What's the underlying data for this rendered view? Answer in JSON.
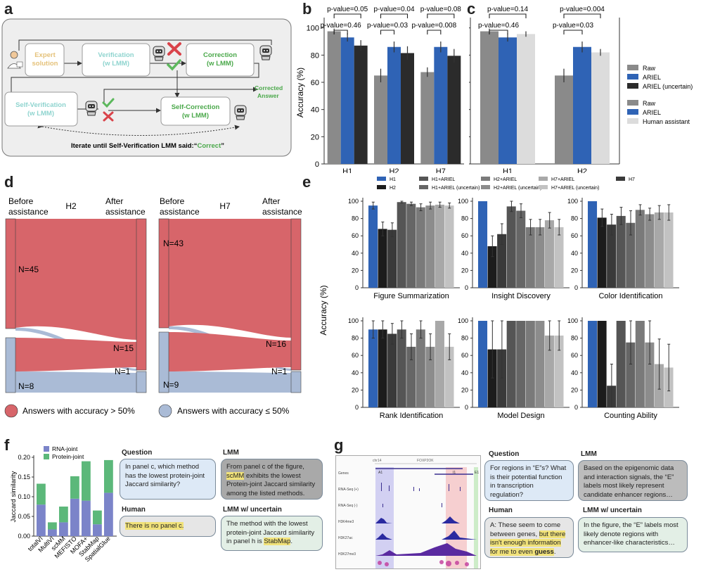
{
  "panels": {
    "a": "a",
    "b": "b",
    "c": "c",
    "d": "d",
    "e": "e",
    "f": "f",
    "g": "g"
  },
  "colors": {
    "raw": "#8a8a8a",
    "ariel": "#2f63b5",
    "uncertain": "#2b2b2b",
    "human": "#dcdcdc",
    "red": "#d7656a",
    "blue": "#aabbd6"
  },
  "panel_a": {
    "expert": [
      "Expert",
      "solution"
    ],
    "verification": [
      "Verification",
      "(w LMM)"
    ],
    "correction": [
      "Correction",
      "(w LMM)"
    ],
    "self_verification": [
      "Self-Verification",
      "(w LMM)"
    ],
    "self_correction": [
      "Self-Correction",
      "(w LMM)"
    ],
    "corrected": [
      "Corrected",
      "Answer"
    ],
    "iterate_prefix": "Iterate until Self-Verification LMM said:“",
    "iterate_word": "Correct",
    "iterate_suffix": "”"
  },
  "chart_data": [
    {
      "id": "b",
      "type": "bar",
      "ylabel": "Accuracy (%)",
      "ylim": [
        0,
        105
      ],
      "yticks": [
        0,
        20,
        40,
        60,
        80,
        100
      ],
      "categories": [
        "H1",
        "H2",
        "H7"
      ],
      "series": [
        {
          "name": "Raw",
          "color": "#8a8a8a",
          "values": [
            97.5,
            65,
            67.5
          ],
          "err": [
            2,
            5,
            3.5
          ]
        },
        {
          "name": "ARIEL",
          "color": "#2f63b5",
          "values": [
            93,
            86,
            86
          ],
          "err": [
            3,
            4,
            4
          ]
        },
        {
          "name": "ARIEL (uncertain)",
          "color": "#2b2b2b",
          "values": [
            87,
            81.5,
            79.5
          ],
          "err": [
            4,
            5,
            5
          ]
        }
      ],
      "annotations": [
        {
          "text": "p-value=0.05",
          "from": [
            0,
            0
          ],
          "to": [
            0,
            2
          ]
        },
        {
          "text": "p-value=0.46",
          "from": [
            0,
            0
          ],
          "to": [
            0,
            1
          ]
        },
        {
          "text": "p-value=0.04",
          "from": [
            1,
            0
          ],
          "to": [
            1,
            2
          ]
        },
        {
          "text": "p-value=0.03",
          "from": [
            1,
            0
          ],
          "to": [
            1,
            1
          ]
        },
        {
          "text": "p-value=0.08",
          "from": [
            2,
            0
          ],
          "to": [
            2,
            2
          ]
        },
        {
          "text": "p-value=0.008",
          "from": [
            2,
            0
          ],
          "to": [
            2,
            1
          ]
        }
      ],
      "legend": [
        "Raw",
        "ARIEL",
        "ARIEL (uncertain)"
      ]
    },
    {
      "id": "c",
      "type": "bar",
      "ylim": [
        0,
        105
      ],
      "categories": [
        "H1",
        "H2"
      ],
      "series": [
        {
          "name": "Raw",
          "color": "#8a8a8a",
          "values": [
            97.5,
            65
          ],
          "err": [
            2,
            5
          ]
        },
        {
          "name": "ARIEL",
          "color": "#2f63b5",
          "values": [
            93,
            86
          ],
          "err": [
            3,
            4
          ]
        },
        {
          "name": "Human assistant",
          "color": "#dcdcdc",
          "values": [
            95.5,
            82
          ],
          "err": [
            2,
            2.5
          ]
        }
      ],
      "annotations": [
        {
          "text": "p-value=0.14",
          "from": [
            0,
            0
          ],
          "to": [
            0,
            2
          ]
        },
        {
          "text": "p-value=0.46",
          "from": [
            0,
            0
          ],
          "to": [
            0,
            1
          ]
        },
        {
          "text": "p-value=0.004",
          "from": [
            1,
            0
          ],
          "to": [
            1,
            2
          ]
        },
        {
          "text": "p-value=0.03",
          "from": [
            1,
            0
          ],
          "to": [
            1,
            1
          ]
        }
      ],
      "legend": [
        "Raw",
        "ARIEL",
        "Human assistant"
      ]
    },
    {
      "id": "e",
      "type": "bar",
      "ylabel": "Accuracy (%)",
      "ylim": [
        0,
        100
      ],
      "yticks": [
        0,
        20,
        40,
        60,
        80,
        100
      ],
      "legend": [
        "H1",
        "H2",
        "H1+ARIEL",
        "H1+ARIEL (uncertain)",
        "H2+ARIEL",
        "H2+ARIEL (uncertain)",
        "H7+ARIEL",
        "H7+ARIEL (uncertain)",
        "H7"
      ],
      "bar_order": [
        "H1",
        "H2",
        "H7",
        "H1+ARIEL",
        "H1+ARIEL (uncertain)",
        "H2+ARIEL",
        "H2+ARIEL (uncertain)",
        "H7+ARIEL",
        "H7+ARIEL (uncertain)"
      ],
      "subplots": [
        {
          "title": "Figure Summarization",
          "values": [
            95,
            68,
            67,
            99,
            97,
            93,
            95,
            96,
            95
          ],
          "err": [
            4,
            8,
            8,
            1,
            2,
            4,
            4,
            3,
            3
          ]
        },
        {
          "title": "Insight Discovery",
          "values": [
            100,
            48,
            62,
            94,
            89,
            70,
            70,
            78,
            70
          ],
          "err": [
            0,
            12,
            12,
            6,
            8,
            9,
            9,
            9,
            9
          ]
        },
        {
          "title": "Color Identification",
          "values": [
            100,
            81,
            73,
            83,
            75,
            90,
            85,
            87,
            87
          ],
          "err": [
            0,
            10,
            12,
            10,
            14,
            6,
            7,
            8,
            9
          ]
        },
        {
          "title": "Rank Identification",
          "values": [
            90,
            90,
            85,
            90,
            70,
            90,
            70,
            100,
            70
          ],
          "err": [
            10,
            10,
            12,
            10,
            15,
            10,
            15,
            0,
            15
          ]
        },
        {
          "title": "Model Design",
          "values": [
            100,
            67,
            67,
            100,
            100,
            100,
            100,
            83,
            83
          ],
          "err": [
            0,
            33,
            33,
            0,
            0,
            0,
            0,
            17,
            17
          ]
        },
        {
          "title": "Counting Ability",
          "values": [
            100,
            100,
            25,
            100,
            75,
            100,
            75,
            50,
            46
          ],
          "err": [
            0,
            0,
            25,
            0,
            25,
            0,
            25,
            29,
            27
          ]
        }
      ]
    },
    {
      "id": "f",
      "type": "bar",
      "ylabel": "Jaccard similarity",
      "ylim": [
        0,
        0.2
      ],
      "yticks": [
        "0.00",
        "0.05",
        "0.10",
        "0.15",
        "0.20"
      ],
      "categories": [
        "totalVI",
        "MultiVI",
        "scMM",
        "MEFISTO",
        "MOFA+",
        "StabMap",
        "SpatialGlue"
      ],
      "series": [
        {
          "name": "RNA-joint",
          "color": "#7b84c9",
          "values": [
            0.08,
            0.017,
            0.035,
            0.095,
            0.09,
            0.03,
            0.11
          ]
        },
        {
          "name": "Protein-joint",
          "color": "#5cb87a",
          "values": [
            0.053,
            0.018,
            0.04,
            0.057,
            0.1,
            0.035,
            0.083
          ]
        }
      ]
    }
  ],
  "panel_d": {
    "before": [
      "Before",
      "assistance"
    ],
    "after": [
      "After",
      "assistance"
    ],
    "h2": {
      "title": "H2",
      "n_top": "N=45",
      "n_bottom": "N=8",
      "n_right_red": "N=15",
      "n_right_blue": "N=1"
    },
    "h7": {
      "title": "H7",
      "n_top": "N=43",
      "n_bottom": "N=9",
      "n_right_red": "N=16",
      "n_right_blue": "N=1"
    },
    "legend_red": "Answers with accuracy > 50%",
    "legend_blue": "Answers with accuracy ≤ 50%"
  },
  "panel_f": {
    "legend": [
      "RNA-joint",
      "Protein-joint"
    ],
    "question_title": "Question",
    "question": "In panel c, which method has the lowest protein-joint Jaccard similarity?",
    "lmm_title": "LMM",
    "lmm_pre": "From panel c of the figure, ",
    "lmm_hl": "scMM",
    "lmm_post": " exhibits the lowest Protein-joint Jaccard similarity among the listed methods.",
    "human_title": "Human",
    "human": "There is no panel c.",
    "unc_title": "LMM w/ uncertain",
    "unc_pre": "The method with the lowest protein-joint Jaccard similarity in panel h is ",
    "unc_hl": "StabMap",
    "unc_post": "."
  },
  "panel_g": {
    "question_title": "Question",
    "question": "For regions in “E”s? What is their potential function in transcription regulation?",
    "lmm_title": "LMM",
    "lmm": "Based on the epigenomic data and interaction signals, the “E” labels most likely represent candidate enhancer regions…",
    "human_title": "Human",
    "human_pre": "A: These seem to come between genes, ",
    "human_hl": "but there isn't enough information for me to even ",
    "human_bold": "guess",
    "human_post": ".",
    "unc_title": "LMM w/ uncertain",
    "unc": "In the figure, the “E” labels most likely denote regions with enhancer-like characteristics…",
    "tracks": [
      "Genes",
      "RNA-Seq (+)",
      "RNA-Seq (-)",
      "H3K4me3",
      "H3K27ac",
      "H3K27me3"
    ],
    "region_labels": [
      "A1",
      "I1",
      "E1"
    ],
    "locus": "chr14",
    "gene_label": "FOXP2OK"
  }
}
